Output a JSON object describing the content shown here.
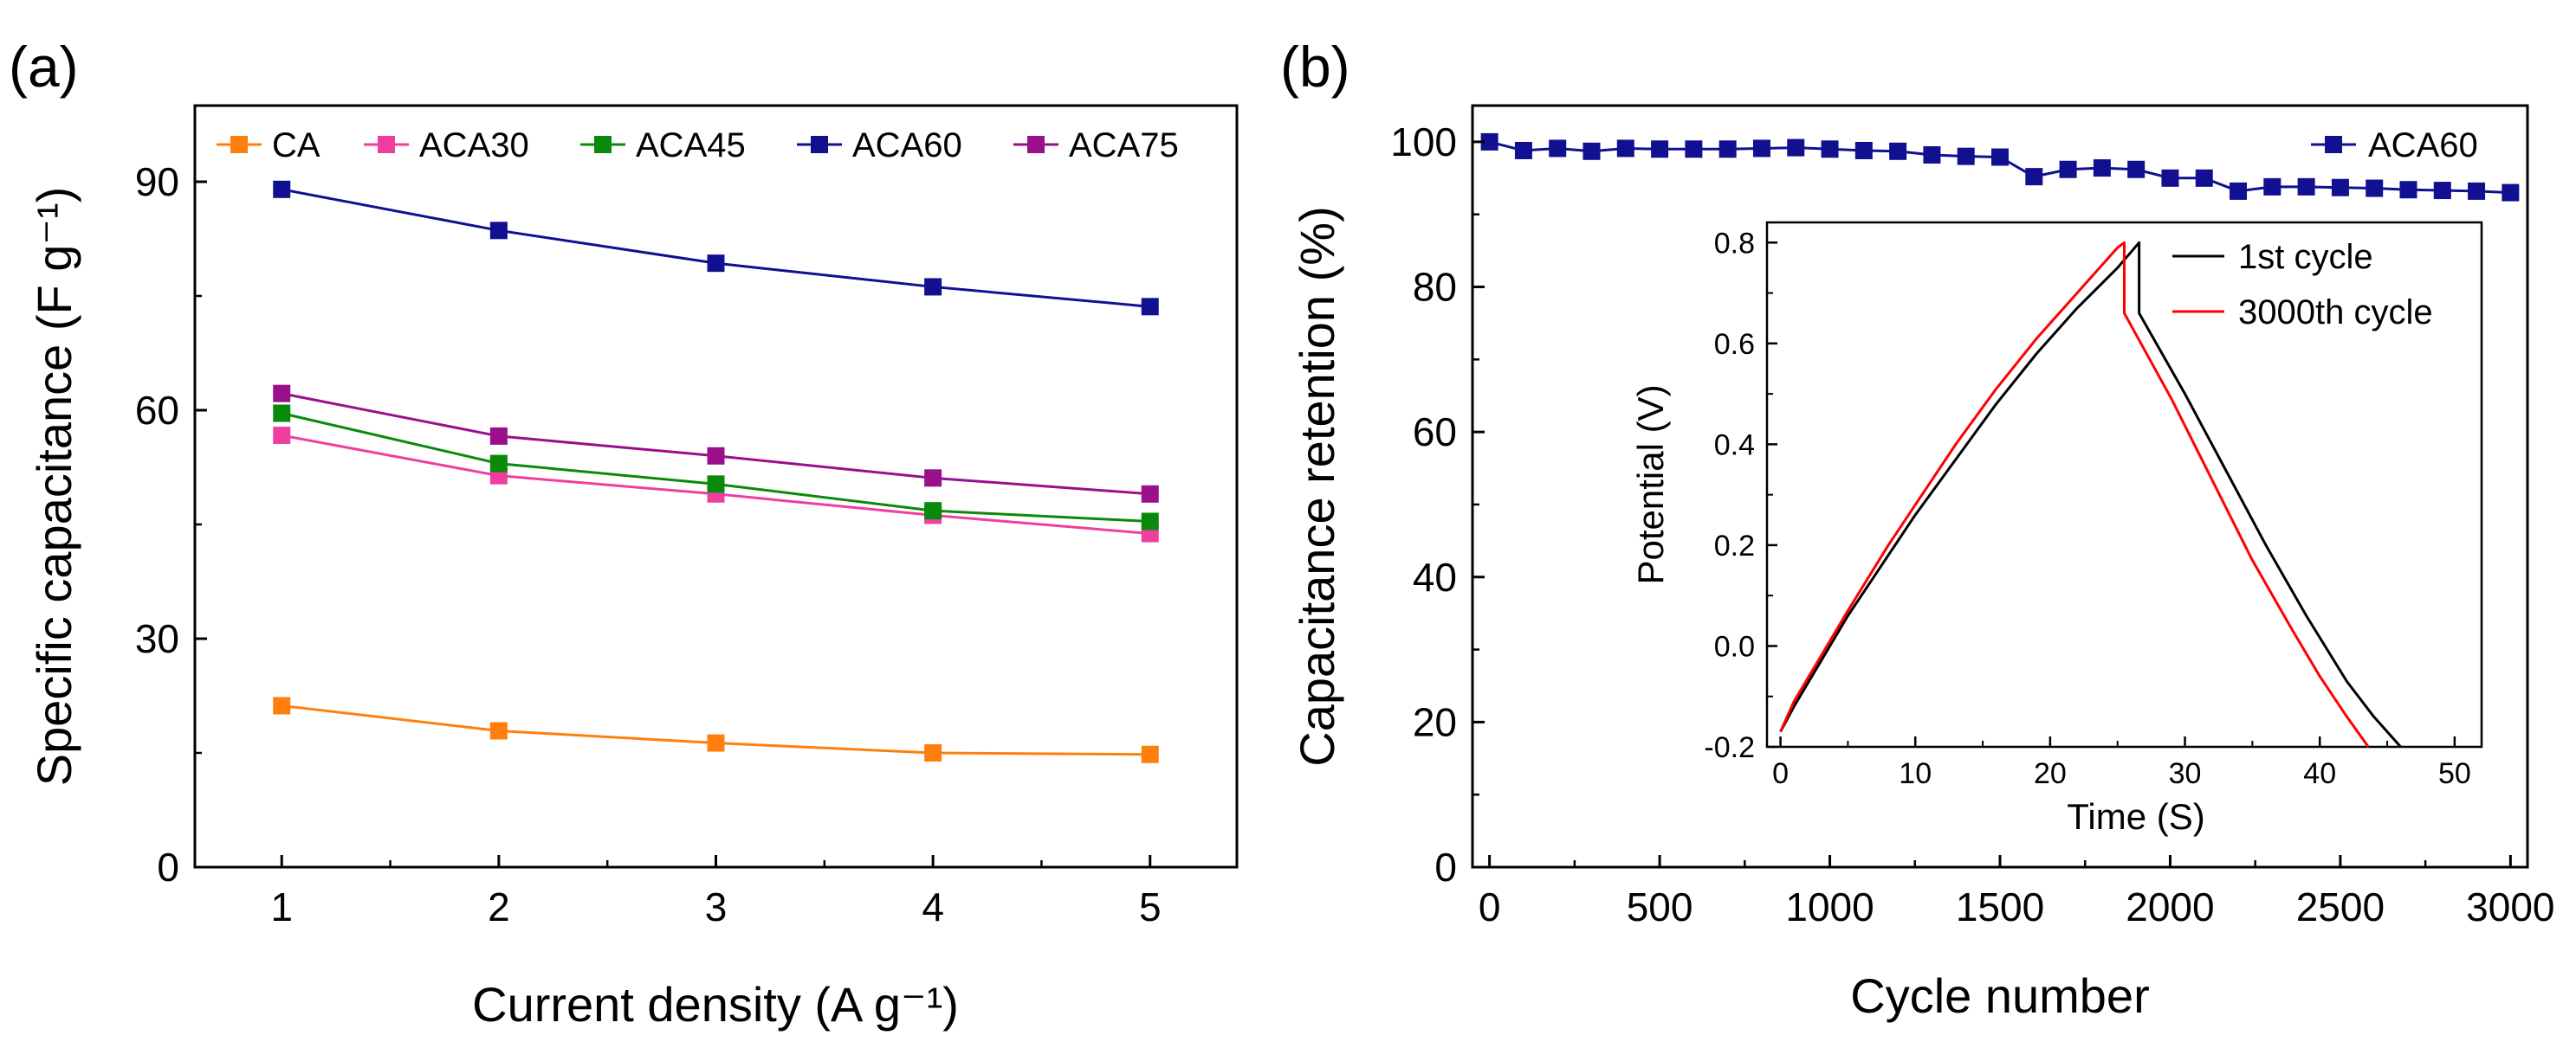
{
  "chart_data": [
    {
      "type": "line",
      "panel_label": "(a)",
      "xlabel": "Current density (A g⁻¹)",
      "ylabel": "Specific capacitance (F g⁻¹)",
      "x": [
        1,
        2,
        3,
        4,
        5
      ],
      "xticks": [
        "1",
        "2",
        "3",
        "4",
        "5"
      ],
      "yticks": [
        "0",
        "30",
        "60",
        "90"
      ],
      "xlim": [
        0.6,
        5.4
      ],
      "ylim": [
        0,
        100
      ],
      "legend_position": "top",
      "series": [
        {
          "name": "CA",
          "color": "#ff7f0e",
          "marker": "square",
          "values": [
            21.2,
            17.9,
            16.3,
            15.0,
            14.8
          ]
        },
        {
          "name": "ACA30",
          "color": "#ee3fa0",
          "marker": "square",
          "values": [
            56.7,
            51.4,
            49.0,
            46.2,
            43.8
          ]
        },
        {
          "name": "ACA45",
          "color": "#0a8a0a",
          "marker": "square",
          "values": [
            59.6,
            53.0,
            50.3,
            46.8,
            45.4
          ]
        },
        {
          "name": "ACA60",
          "color": "#101090",
          "marker": "square",
          "values": [
            89.0,
            83.6,
            79.3,
            76.2,
            73.6
          ]
        },
        {
          "name": "ACA75",
          "color": "#9a0f8a",
          "marker": "square",
          "values": [
            62.2,
            56.6,
            54.0,
            51.1,
            49.0
          ]
        }
      ]
    },
    {
      "type": "line",
      "panel_label": "(b)",
      "xlabel": "Cycle number",
      "ylabel": "Capacitance retention (%)",
      "xticks": [
        "0",
        "500",
        "1000",
        "1500",
        "2000",
        "2500",
        "3000"
      ],
      "yticks": [
        "0",
        "20",
        "40",
        "60",
        "80",
        "100"
      ],
      "xlim": [
        -50,
        3050
      ],
      "ylim": [
        0,
        105
      ],
      "legend_position": "top-right",
      "series": [
        {
          "name": "ACA60",
          "color": "#101090",
          "marker": "square",
          "x": [
            0,
            100,
            200,
            300,
            400,
            500,
            600,
            700,
            800,
            900,
            1000,
            1100,
            1200,
            1300,
            1400,
            1500,
            1600,
            1700,
            1800,
            1900,
            2000,
            2100,
            2200,
            2300,
            2400,
            2500,
            2600,
            2700,
            2800,
            2900,
            3000
          ],
          "values": [
            100,
            98.8,
            99.1,
            98.7,
            99.1,
            99.0,
            99.0,
            99.0,
            99.1,
            99.2,
            99.0,
            98.8,
            98.7,
            98.2,
            98.0,
            97.9,
            95.2,
            96.2,
            96.4,
            96.2,
            95.0,
            95.0,
            93.2,
            93.8,
            93.8,
            93.7,
            93.6,
            93.4,
            93.3,
            93.2,
            93.0
          ]
        }
      ]
    },
    {
      "type": "line",
      "role": "inset",
      "xlabel": "Time (S)",
      "ylabel": "Potential (V)",
      "xticks": [
        "0",
        "10",
        "20",
        "30",
        "40",
        "50"
      ],
      "yticks": [
        "-0.2",
        "0.0",
        "0.2",
        "0.4",
        "0.6",
        "0.8"
      ],
      "xlim": [
        -1,
        52
      ],
      "ylim": [
        -0.2,
        0.84
      ],
      "legend_position": "top-right",
      "series": [
        {
          "name": "1st cycle",
          "color": "#000000",
          "x": [
            0,
            1,
            3,
            5,
            8,
            10,
            13,
            16,
            19,
            22,
            25,
            26.6,
            26.6,
            30,
            33,
            36,
            39,
            42,
            44,
            46
          ],
          "values": [
            -0.17,
            -0.12,
            -0.03,
            0.06,
            0.18,
            0.26,
            0.37,
            0.48,
            0.58,
            0.67,
            0.75,
            0.8,
            0.66,
            0.5,
            0.35,
            0.2,
            0.06,
            -0.07,
            -0.14,
            -0.2
          ]
        },
        {
          "name": "3000th cycle",
          "color": "#ff0000",
          "x": [
            0,
            1,
            3,
            5,
            8,
            10,
            13,
            16,
            19,
            22,
            25,
            25.5,
            25.5,
            29,
            32,
            35,
            38,
            40,
            42,
            43.6
          ],
          "values": [
            -0.17,
            -0.11,
            -0.02,
            0.07,
            0.2,
            0.28,
            0.4,
            0.51,
            0.61,
            0.7,
            0.79,
            0.8,
            0.66,
            0.49,
            0.33,
            0.17,
            0.03,
            -0.06,
            -0.14,
            -0.2
          ]
        }
      ]
    }
  ]
}
